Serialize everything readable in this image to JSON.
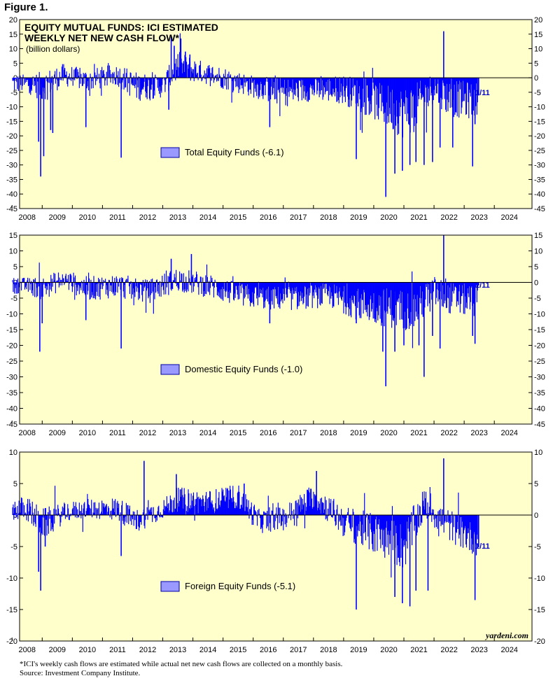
{
  "figure_label": "Figure 1.",
  "title_line1": "EQUITY MUTUAL FUNDS: ICI ESTIMATED",
  "title_line2": "WEEKLY NET NEW CASH FLOW*",
  "units": "(billion dollars)",
  "latest_label": "1/11",
  "watermark": "yardeni.com",
  "footnote": "*ICI's weekly cash flows are estimated while actual net new cash flows are collected on a monthly basis.",
  "source": "Source: Investment Company Institute.",
  "colors": {
    "background": "#ffffcc",
    "bars": "#0000ff",
    "legend_box": "#9999ff",
    "label_text": "#0000cc"
  },
  "chart_data": [
    {
      "type": "bar",
      "legend": "Total Equity Funds (-6.1)",
      "x_tick_labels": [
        "2008",
        "2009",
        "2010",
        "2011",
        "2012",
        "2013",
        "2014",
        "2015",
        "2016",
        "2017",
        "2018",
        "2019",
        "2020",
        "2021",
        "2022",
        "2023",
        "2024"
      ],
      "y_tick_labels": [
        "20",
        "15",
        "10",
        "5",
        "0",
        "-5",
        "-10",
        "-15",
        "-20",
        "-25",
        "-30",
        "-35",
        "-40",
        "-45"
      ],
      "ylim": [
        -45,
        20
      ],
      "xlim": [
        2007.75,
        2024.75
      ],
      "latest_value": -6.1,
      "series_keypoints": [
        {
          "date": 2008.0,
          "base": -2,
          "amp": 2.5
        },
        {
          "date": 2008.5,
          "base": -3,
          "amp": 4
        },
        {
          "date": 2009.2,
          "base": 1,
          "amp": 3
        },
        {
          "date": 2010.0,
          "base": -1,
          "amp": 3
        },
        {
          "date": 2011.0,
          "base": 1,
          "amp": 3
        },
        {
          "date": 2011.6,
          "base": -3,
          "amp": 4
        },
        {
          "date": 2012.5,
          "base": -3,
          "amp": 3
        },
        {
          "date": 2013.0,
          "base": 4,
          "amp": 4
        },
        {
          "date": 2013.8,
          "base": 2,
          "amp": 3
        },
        {
          "date": 2014.5,
          "base": 0,
          "amp": 3
        },
        {
          "date": 2015.5,
          "base": -3,
          "amp": 3
        },
        {
          "date": 2016.5,
          "base": -5,
          "amp": 4
        },
        {
          "date": 2017.5,
          "base": -4,
          "amp": 3
        },
        {
          "date": 2018.5,
          "base": -4,
          "amp": 4
        },
        {
          "date": 2019.5,
          "base": -8,
          "amp": 5
        },
        {
          "date": 2020.5,
          "base": -12,
          "amp": 7
        },
        {
          "date": 2021.0,
          "base": -9,
          "amp": 6
        },
        {
          "date": 2021.5,
          "base": -3,
          "amp": 4
        },
        {
          "date": 2022.0,
          "base": -7,
          "amp": 5
        },
        {
          "date": 2022.9,
          "base": -8,
          "amp": 5
        }
      ],
      "spikes": [
        {
          "date": 2008.38,
          "value": -22
        },
        {
          "date": 2008.45,
          "value": -34
        },
        {
          "date": 2008.55,
          "value": -27
        },
        {
          "date": 2008.78,
          "value": -18
        },
        {
          "date": 2008.85,
          "value": -19
        },
        {
          "date": 2009.95,
          "value": -17
        },
        {
          "date": 2011.12,
          "value": -27.5
        },
        {
          "date": 2012.7,
          "value": -11
        },
        {
          "date": 2012.78,
          "value": 14
        },
        {
          "date": 2012.88,
          "value": 11
        },
        {
          "date": 2013.1,
          "value": 13.5
        },
        {
          "date": 2013.25,
          "value": 9
        },
        {
          "date": 2013.4,
          "value": 8
        },
        {
          "date": 2016.05,
          "value": -17
        },
        {
          "date": 2018.92,
          "value": -28
        },
        {
          "date": 2019.9,
          "value": -41
        },
        {
          "date": 2020.2,
          "value": -33
        },
        {
          "date": 2020.45,
          "value": -32
        },
        {
          "date": 2020.7,
          "value": -30
        },
        {
          "date": 2020.9,
          "value": -29
        },
        {
          "date": 2021.17,
          "value": -30
        },
        {
          "date": 2021.45,
          "value": -29
        },
        {
          "date": 2021.7,
          "value": -24
        },
        {
          "date": 2021.82,
          "value": 16
        },
        {
          "date": 2022.12,
          "value": -24
        },
        {
          "date": 2022.78,
          "value": -30.5
        },
        {
          "date": 2022.86,
          "value": -16
        },
        {
          "date": 2022.98,
          "value": -6.1
        }
      ]
    },
    {
      "type": "bar",
      "legend": "Domestic Equity Funds (-1.0)",
      "x_tick_labels": [
        "2008",
        "2009",
        "2010",
        "2011",
        "2012",
        "2013",
        "2014",
        "2015",
        "2016",
        "2017",
        "2018",
        "2019",
        "2020",
        "2021",
        "2022",
        "2023",
        "2024"
      ],
      "y_tick_labels": [
        "15",
        "10",
        "5",
        "0",
        "-5",
        "-10",
        "-15",
        "-20",
        "-25",
        "-30",
        "-35",
        "-40",
        "-45"
      ],
      "ylim": [
        -45,
        15
      ],
      "xlim": [
        2007.75,
        2024.75
      ],
      "latest_value": -1.0,
      "series_keypoints": [
        {
          "date": 2008.0,
          "base": -1,
          "amp": 2
        },
        {
          "date": 2008.5,
          "base": -2,
          "amp": 3
        },
        {
          "date": 2009.2,
          "base": 1,
          "amp": 2.5
        },
        {
          "date": 2010.0,
          "base": -2,
          "amp": 3
        },
        {
          "date": 2011.0,
          "base": -1,
          "amp": 3
        },
        {
          "date": 2012.0,
          "base": -3,
          "amp": 3
        },
        {
          "date": 2013.0,
          "base": 1,
          "amp": 3
        },
        {
          "date": 2014.0,
          "base": -1,
          "amp": 3
        },
        {
          "date": 2015.0,
          "base": -4,
          "amp": 3
        },
        {
          "date": 2016.0,
          "base": -5,
          "amp": 3
        },
        {
          "date": 2017.0,
          "base": -5,
          "amp": 3
        },
        {
          "date": 2018.0,
          "base": -4,
          "amp": 3
        },
        {
          "date": 2019.0,
          "base": -7,
          "amp": 4
        },
        {
          "date": 2020.0,
          "base": -8,
          "amp": 5
        },
        {
          "date": 2020.8,
          "base": -9,
          "amp": 5
        },
        {
          "date": 2021.5,
          "base": -3,
          "amp": 4
        },
        {
          "date": 2022.0,
          "base": -5,
          "amp": 4
        },
        {
          "date": 2022.9,
          "base": -6,
          "amp": 4
        }
      ],
      "spikes": [
        {
          "date": 2008.42,
          "value": -22
        },
        {
          "date": 2008.5,
          "value": -13
        },
        {
          "date": 2009.95,
          "value": -12
        },
        {
          "date": 2011.12,
          "value": -21
        },
        {
          "date": 2012.78,
          "value": 7.5
        },
        {
          "date": 2013.45,
          "value": 9
        },
        {
          "date": 2016.05,
          "value": -13
        },
        {
          "date": 2018.92,
          "value": -13
        },
        {
          "date": 2019.8,
          "value": -22
        },
        {
          "date": 2019.9,
          "value": -33
        },
        {
          "date": 2020.2,
          "value": -22
        },
        {
          "date": 2020.5,
          "value": -20
        },
        {
          "date": 2021.0,
          "value": -20
        },
        {
          "date": 2021.17,
          "value": -30
        },
        {
          "date": 2021.45,
          "value": -17
        },
        {
          "date": 2021.7,
          "value": -21
        },
        {
          "date": 2021.82,
          "value": 15
        },
        {
          "date": 2022.78,
          "value": -17
        },
        {
          "date": 2022.86,
          "value": -19.5
        },
        {
          "date": 2022.98,
          "value": -1.0
        }
      ]
    },
    {
      "type": "bar",
      "legend": "Foreign Equity Funds (-5.1)",
      "x_tick_labels": [
        "2008",
        "2009",
        "2010",
        "2011",
        "2012",
        "2013",
        "2014",
        "2015",
        "2016",
        "2017",
        "2018",
        "2019",
        "2020",
        "2021",
        "2022",
        "2023",
        "2024"
      ],
      "y_tick_labels": [
        "10",
        "5",
        "0",
        "-5",
        "-10",
        "-15",
        "-20"
      ],
      "ylim": [
        -20,
        10
      ],
      "xlim": [
        2007.75,
        2024.75
      ],
      "latest_value": -5.1,
      "series_keypoints": [
        {
          "date": 2008.0,
          "base": 1,
          "amp": 1.5
        },
        {
          "date": 2008.5,
          "base": -1.5,
          "amp": 2
        },
        {
          "date": 2009.3,
          "base": 0.5,
          "amp": 1.2
        },
        {
          "date": 2010.0,
          "base": 1,
          "amp": 1.2
        },
        {
          "date": 2011.0,
          "base": 1,
          "amp": 1.5
        },
        {
          "date": 2011.6,
          "base": -1,
          "amp": 1.5
        },
        {
          "date": 2012.5,
          "base": 1,
          "amp": 1.2
        },
        {
          "date": 2013.0,
          "base": 2.5,
          "amp": 1.5
        },
        {
          "date": 2014.0,
          "base": 2,
          "amp": 1.5
        },
        {
          "date": 2015.0,
          "base": 3,
          "amp": 1.5
        },
        {
          "date": 2015.7,
          "base": -1,
          "amp": 1.5
        },
        {
          "date": 2016.5,
          "base": -0.5,
          "amp": 1.5
        },
        {
          "date": 2017.5,
          "base": 3,
          "amp": 1.5
        },
        {
          "date": 2018.5,
          "base": -1,
          "amp": 2
        },
        {
          "date": 2019.5,
          "base": -3,
          "amp": 2.5
        },
        {
          "date": 2020.5,
          "base": -5,
          "amp": 3
        },
        {
          "date": 2021.2,
          "base": 2,
          "amp": 2
        },
        {
          "date": 2021.8,
          "base": -1,
          "amp": 2
        },
        {
          "date": 2022.5,
          "base": -3,
          "amp": 2
        },
        {
          "date": 2022.9,
          "base": -4,
          "amp": 2
        }
      ],
      "spikes": [
        {
          "date": 2008.38,
          "value": -9
        },
        {
          "date": 2008.45,
          "value": -12
        },
        {
          "date": 2008.6,
          "value": -5
        },
        {
          "date": 2011.12,
          "value": -6.5
        },
        {
          "date": 2011.88,
          "value": 8.6
        },
        {
          "date": 2012.95,
          "value": 6.5
        },
        {
          "date": 2015.2,
          "value": 5
        },
        {
          "date": 2017.6,
          "value": 7
        },
        {
          "date": 2018.92,
          "value": -15
        },
        {
          "date": 2020.2,
          "value": -13
        },
        {
          "date": 2020.45,
          "value": -14
        },
        {
          "date": 2020.7,
          "value": -14.5
        },
        {
          "date": 2020.9,
          "value": -12
        },
        {
          "date": 2021.3,
          "value": -12
        },
        {
          "date": 2021.82,
          "value": 9
        },
        {
          "date": 2022.86,
          "value": -13.5
        },
        {
          "date": 2022.98,
          "value": -5.1
        }
      ]
    }
  ]
}
